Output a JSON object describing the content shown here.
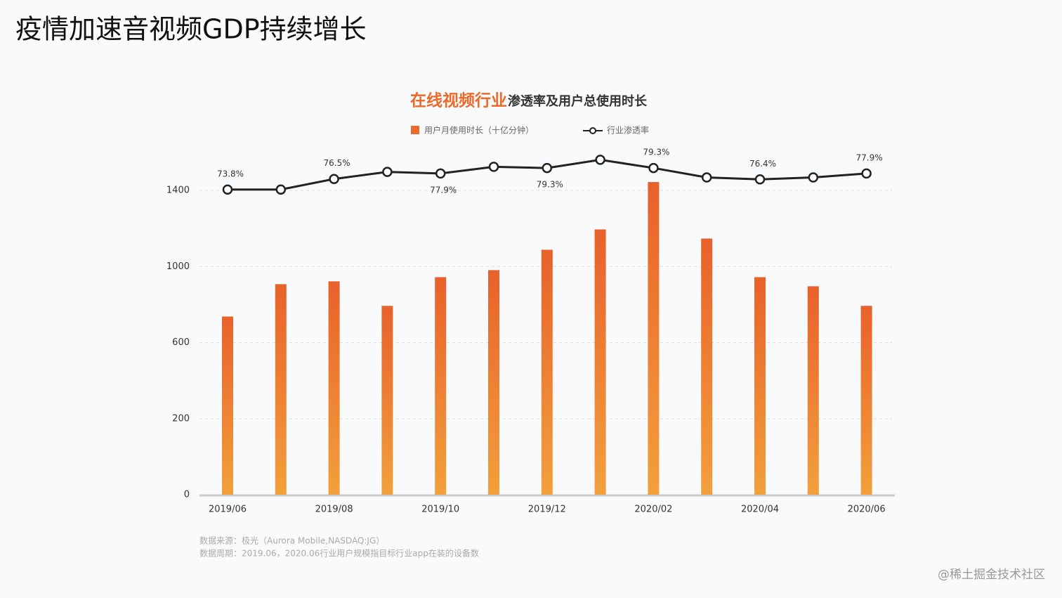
{
  "title": "疫情加速音视频GDP持续增长",
  "chart_data": {
    "type": "bar-line",
    "title": "在线视频行业",
    "subtitle": "渗透率及用户总使用时长",
    "categories": [
      "2019/06",
      null,
      "2019/08",
      null,
      "2019/10",
      null,
      "2019/12",
      null,
      "2020/02",
      null,
      "2020/04",
      null,
      "2020/06"
    ],
    "series": [
      {
        "name": "用户月使用时长（十亿分钟）",
        "type": "bar",
        "color": "#ec6a2c",
        "values": [
          737,
          907,
          922,
          793,
          944,
          981,
          1088,
          1195,
          1444,
          1147,
          944,
          896,
          793
        ]
      },
      {
        "name": "行业渗透率",
        "type": "line",
        "axis": "y2",
        "color": "#222222",
        "values": [
          73.8,
          73.8,
          76.5,
          78.3,
          77.9,
          79.6,
          79.3,
          81.4,
          79.3,
          76.9,
          76.4,
          76.9,
          77.9
        ],
        "value_labels": [
          "73.8%",
          null,
          "76.5%",
          null,
          "77.9%",
          null,
          "79.3%",
          null,
          "79.3%",
          null,
          "76.4%",
          null,
          "77.9%"
        ]
      }
    ],
    "ylim": [
      0,
      1400
    ],
    "yticks": [
      0,
      200,
      600,
      1000,
      1400
    ],
    "y2lim": [
      70,
      82
    ],
    "grid": true,
    "source": [
      "数据来源：极光（Aurora Mobile,NASDAQ:JG）",
      "数据周期：2019.06，2020.06行业用户规模指目标行业app在装的设备数"
    ]
  },
  "watermark": "@稀土掘金技术社区"
}
